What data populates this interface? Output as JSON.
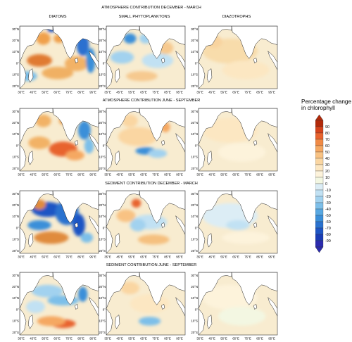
{
  "section_titles": [
    "ATMOSPHERE CONTRIBUTION DECEMBER - MARCH",
    "ATMOSPHERE CONTRIBUTION JUNE - SEPTEMBER",
    "SEDIMENT CONTRIBUTION DECEMBER - MARCH",
    "SEDIMENT CONTRIBUTION JUNE - SEPTEMBER"
  ],
  "column_titles": [
    "DIATOMS",
    "SMALL PHYTOPLANKTONS",
    "DIAZOTROPHS"
  ],
  "lat_labels": [
    "30°N",
    "20°N",
    "10°N",
    "0°",
    "10°S",
    "20°S"
  ],
  "lon_labels": [
    "35°E",
    "45°E",
    "55°E",
    "65°E",
    "75°E",
    "85°E",
    "95°E"
  ],
  "legend": {
    "title_line1": "Percentage change",
    "title_line2": "in chlorophyll",
    "ticks": [
      "90",
      "80",
      "70",
      "60",
      "50",
      "40",
      "30",
      "20",
      "10",
      "0",
      "-10",
      "-20",
      "-30",
      "-40",
      "-50",
      "-60",
      "-70",
      "-80",
      "-90"
    ],
    "colors": [
      "#b22a0a",
      "#d4431b",
      "#e8632e",
      "#f08a45",
      "#f5a862",
      "#f8c283",
      "#fad6a2",
      "#fce7c2",
      "#fdf3db",
      "#f3f7e2",
      "#dcedf5",
      "#c1e1f3",
      "#a2d2ef",
      "#7dbfe9",
      "#58a8e2",
      "#3b8fd9",
      "#2a72cf",
      "#1e55c4",
      "#1a3cb5",
      "#2b2bae"
    ]
  },
  "panels": [
    {
      "blobs": [
        [
          "#f0a04b",
          0.3,
          0.2,
          0.09,
          0.1
        ],
        [
          "#f0a04b",
          0.5,
          0.2,
          0.07,
          0.07
        ],
        [
          "#e07a30",
          0.25,
          0.55,
          0.16,
          0.1
        ],
        [
          "#f0b063",
          0.48,
          0.75,
          0.2,
          0.1
        ],
        [
          "#f2b266",
          0.72,
          0.6,
          0.15,
          0.12
        ],
        [
          "#2a6fd0",
          0.8,
          0.3,
          0.08,
          0.18
        ],
        [
          "#3b8fd9",
          0.9,
          0.55,
          0.06,
          0.2
        ],
        [
          "#7dbfe9",
          0.1,
          0.8,
          0.12,
          0.08
        ],
        [
          "#1e55c4",
          0.4,
          0.05,
          0.05,
          0.05
        ]
      ]
    },
    {
      "blobs": [
        [
          "#3b8fd9",
          0.3,
          0.2,
          0.08,
          0.08
        ],
        [
          "#a2d2ef",
          0.5,
          0.2,
          0.08,
          0.08
        ],
        [
          "#a2d2ef",
          0.2,
          0.5,
          0.15,
          0.1
        ],
        [
          "#c1e1f3",
          0.65,
          0.55,
          0.2,
          0.12
        ],
        [
          "#f6c98f",
          0.45,
          0.8,
          0.2,
          0.08
        ],
        [
          "#f6c98f",
          0.75,
          0.35,
          0.1,
          0.1
        ]
      ]
    },
    {
      "blobs": [
        [
          "#f8dcab",
          0.4,
          0.4,
          0.35,
          0.2
        ],
        [
          "#fce7c2",
          0.6,
          0.7,
          0.3,
          0.15
        ],
        [
          "#f8d39f",
          0.2,
          0.25,
          0.1,
          0.1
        ]
      ]
    },
    {
      "blobs": [
        [
          "#f2b266",
          0.3,
          0.2,
          0.1,
          0.1
        ],
        [
          "#f0a04b",
          0.55,
          0.2,
          0.05,
          0.06
        ],
        [
          "#f2b266",
          0.25,
          0.55,
          0.14,
          0.1
        ],
        [
          "#e8632e",
          0.55,
          0.65,
          0.18,
          0.12
        ],
        [
          "#f5a862",
          0.7,
          0.75,
          0.12,
          0.08
        ],
        [
          "#3b8fd9",
          0.82,
          0.35,
          0.08,
          0.15
        ],
        [
          "#7dbfe9",
          0.88,
          0.6,
          0.06,
          0.12
        ]
      ]
    },
    {
      "blobs": [
        [
          "#fad6a2",
          0.3,
          0.2,
          0.1,
          0.1
        ],
        [
          "#f5a862",
          0.75,
          0.3,
          0.06,
          0.08
        ],
        [
          "#fad6a2",
          0.4,
          0.45,
          0.25,
          0.15
        ],
        [
          "#3b8fd9",
          0.5,
          0.68,
          0.13,
          0.06
        ],
        [
          "#a2d2ef",
          0.65,
          0.72,
          0.12,
          0.07
        ]
      ]
    },
    {
      "blobs": [
        [
          "#fce7c2",
          0.4,
          0.35,
          0.35,
          0.2
        ],
        [
          "#fdf3db",
          0.55,
          0.7,
          0.3,
          0.15
        ]
      ]
    },
    {
      "blobs": [
        [
          "#1e55c4",
          0.35,
          0.3,
          0.2,
          0.12
        ],
        [
          "#2a72cf",
          0.6,
          0.35,
          0.15,
          0.2
        ],
        [
          "#1e55c4",
          0.75,
          0.55,
          0.08,
          0.18
        ],
        [
          "#3b8fd9",
          0.25,
          0.55,
          0.15,
          0.08
        ],
        [
          "#e08b3e",
          0.4,
          0.75,
          0.22,
          0.1
        ],
        [
          "#e08b3e",
          0.25,
          0.22,
          0.08,
          0.08
        ],
        [
          "#7dbfe9",
          0.85,
          0.75,
          0.08,
          0.08
        ]
      ]
    },
    {
      "blobs": [
        [
          "#e8632e",
          0.38,
          0.2,
          0.06,
          0.07
        ],
        [
          "#f8c283",
          0.25,
          0.4,
          0.12,
          0.1
        ],
        [
          "#c1e1f3",
          0.55,
          0.5,
          0.22,
          0.12
        ],
        [
          "#a2d2ef",
          0.4,
          0.55,
          0.1,
          0.1
        ],
        [
          "#f5c07f",
          0.6,
          0.78,
          0.2,
          0.08
        ]
      ]
    },
    {
      "blobs": [
        [
          "#dcedf5",
          0.4,
          0.4,
          0.35,
          0.2
        ],
        [
          "#c1e1f3",
          0.5,
          0.55,
          0.15,
          0.08
        ],
        [
          "#fdf3db",
          0.6,
          0.75,
          0.3,
          0.1
        ]
      ]
    },
    {
      "blobs": [
        [
          "#a2d2ef",
          0.35,
          0.3,
          0.2,
          0.1
        ],
        [
          "#7dbfe9",
          0.55,
          0.45,
          0.2,
          0.08
        ],
        [
          "#3b8fd9",
          0.8,
          0.35,
          0.06,
          0.12
        ],
        [
          "#e8632e",
          0.55,
          0.82,
          0.16,
          0.07
        ],
        [
          "#f5a862",
          0.4,
          0.78,
          0.18,
          0.08
        ],
        [
          "#c1e1f3",
          0.2,
          0.55,
          0.12,
          0.1
        ]
      ]
    },
    {
      "blobs": [
        [
          "#fad6a2",
          0.3,
          0.25,
          0.12,
          0.1
        ],
        [
          "#fce7c2",
          0.55,
          0.5,
          0.25,
          0.15
        ],
        [
          "#1e55c4",
          0.55,
          0.78,
          0.08,
          0.04
        ],
        [
          "#7dbfe9",
          0.55,
          0.78,
          0.14,
          0.07
        ]
      ]
    },
    {
      "blobs": [
        [
          "#fdf3db",
          0.4,
          0.4,
          0.35,
          0.2
        ],
        [
          "#f3f7e2",
          0.55,
          0.7,
          0.3,
          0.15
        ]
      ]
    }
  ]
}
